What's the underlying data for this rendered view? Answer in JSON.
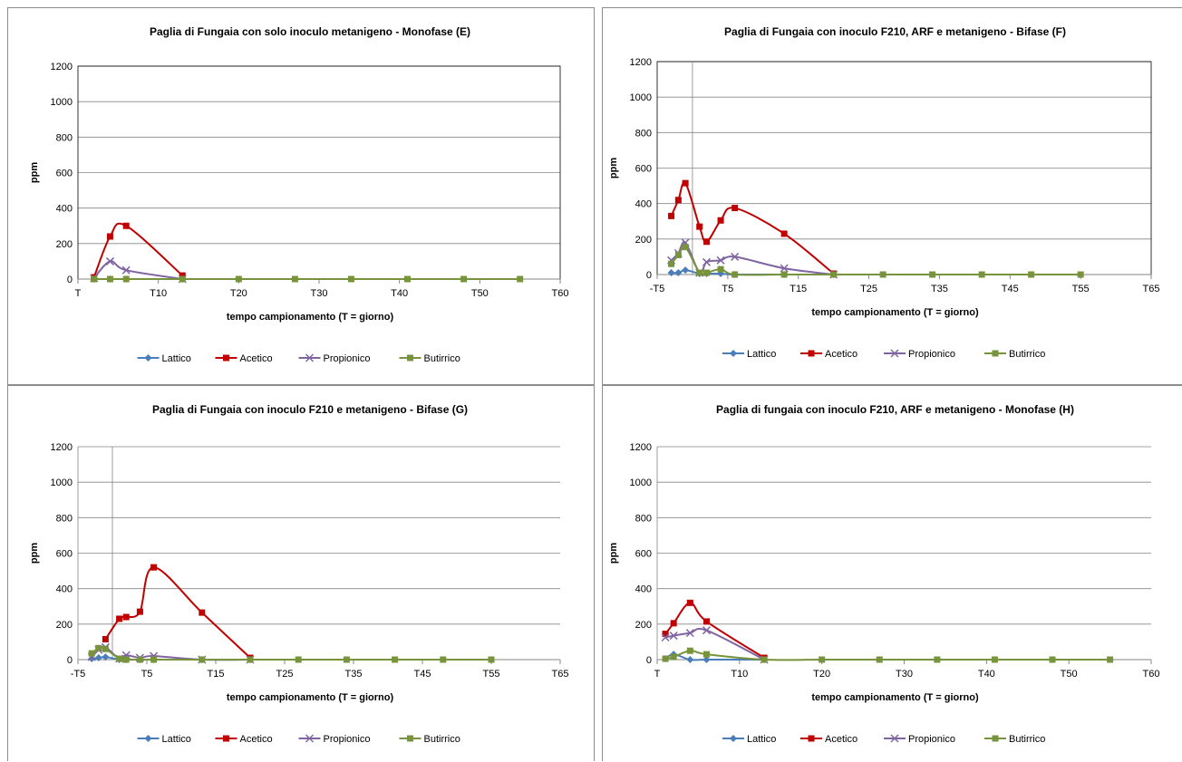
{
  "chart_data": [
    {
      "type": "line",
      "title": "Paglia di Fungaia con solo inoculo metanigeno - Monofase (E)",
      "xlabel": "tempo campionamento (T = giorno)",
      "ylabel": "ppm",
      "xlim": [
        0,
        60
      ],
      "ylim": [
        0,
        1200
      ],
      "y_ticks": [
        "0",
        "200",
        "400",
        "600",
        "800",
        "1000",
        "1200"
      ],
      "x_ticks": [
        {
          "x": 0,
          "label": "T"
        },
        {
          "x": 10,
          "label": "T10"
        },
        {
          "x": 20,
          "label": "T20"
        },
        {
          "x": 30,
          "label": "T30"
        },
        {
          "x": 40,
          "label": "T40"
        },
        {
          "x": 50,
          "label": "T50"
        },
        {
          "x": 60,
          "label": "T60"
        }
      ],
      "grid": true,
      "plot_border": true,
      "vline_x": null,
      "legend_position": "bottom",
      "series": [
        {
          "name": "Lattico",
          "color": "#4a7ebb",
          "marker": "diamond",
          "points": [
            [
              2,
              0
            ],
            [
              4,
              0
            ],
            [
              6,
              0
            ],
            [
              13,
              0
            ]
          ]
        },
        {
          "name": "Acetico",
          "color": "#c00000",
          "marker": "square",
          "points": [
            [
              2,
              10
            ],
            [
              4,
              240
            ],
            [
              6,
              300
            ],
            [
              13,
              20
            ]
          ]
        },
        {
          "name": "Propionico",
          "color": "#8064a2",
          "marker": "x",
          "points": [
            [
              2,
              5
            ],
            [
              4,
              100
            ],
            [
              6,
              50
            ],
            [
              13,
              0
            ]
          ]
        },
        {
          "name": "Butirrico",
          "color": "#77933c",
          "marker": "square",
          "points": [
            [
              2,
              0
            ],
            [
              4,
              0
            ],
            [
              6,
              0
            ],
            [
              13,
              0
            ],
            [
              20,
              0
            ],
            [
              27,
              0
            ],
            [
              34,
              0
            ],
            [
              41,
              0
            ],
            [
              48,
              0
            ],
            [
              55,
              0
            ]
          ]
        }
      ]
    },
    {
      "type": "line",
      "title": "Paglia di Fungaia con inoculo F210, ARF e metanigeno - Bifase (F)",
      "xlabel": "tempo campionamento (T = giorno)",
      "ylabel": "ppm",
      "xlim": [
        -5,
        65
      ],
      "ylim": [
        0,
        1200
      ],
      "y_ticks": [
        "0",
        "200",
        "400",
        "600",
        "800",
        "1000",
        "1200"
      ],
      "x_ticks": [
        {
          "x": -5,
          "label": "-T5"
        },
        {
          "x": 5,
          "label": "T5"
        },
        {
          "x": 15,
          "label": "T15"
        },
        {
          "x": 25,
          "label": "T25"
        },
        {
          "x": 35,
          "label": "T35"
        },
        {
          "x": 45,
          "label": "T45"
        },
        {
          "x": 55,
          "label": "T55"
        },
        {
          "x": 65,
          "label": "T65"
        }
      ],
      "grid": true,
      "plot_border": true,
      "vline_x": 0,
      "legend_position": "bottom",
      "series": [
        {
          "name": "Lattico",
          "color": "#4a7ebb",
          "marker": "diamond",
          "points": [
            [
              -3,
              10
            ],
            [
              -2,
              10
            ],
            [
              -1,
              25
            ],
            [
              1,
              5
            ],
            [
              2,
              5
            ],
            [
              4,
              5
            ],
            [
              6,
              0
            ],
            [
              13,
              0
            ],
            [
              20,
              0
            ]
          ]
        },
        {
          "name": "Acetico",
          "color": "#c00000",
          "marker": "square",
          "points": [
            [
              -3,
              330
            ],
            [
              -2,
              420
            ],
            [
              -1,
              515
            ],
            [
              1,
              270
            ],
            [
              2,
              185
            ],
            [
              4,
              305
            ],
            [
              6,
              375
            ],
            [
              13,
              230
            ],
            [
              20,
              5
            ]
          ]
        },
        {
          "name": "Propionico",
          "color": "#8064a2",
          "marker": "x",
          "points": [
            [
              -3,
              80
            ],
            [
              -2,
              120
            ],
            [
              -1,
              180
            ],
            [
              1,
              10
            ],
            [
              2,
              70
            ],
            [
              4,
              80
            ],
            [
              6,
              100
            ],
            [
              13,
              35
            ],
            [
              20,
              0
            ]
          ]
        },
        {
          "name": "Butirrico",
          "color": "#77933c",
          "marker": "square",
          "points": [
            [
              -3,
              60
            ],
            [
              -2,
              110
            ],
            [
              -1,
              155
            ],
            [
              1,
              10
            ],
            [
              2,
              10
            ],
            [
              4,
              30
            ],
            [
              6,
              0
            ],
            [
              13,
              0
            ],
            [
              20,
              0
            ],
            [
              27,
              0
            ],
            [
              34,
              0
            ],
            [
              41,
              0
            ],
            [
              48,
              0
            ],
            [
              55,
              0
            ]
          ]
        }
      ]
    },
    {
      "type": "line",
      "title": "Paglia di Fungaia con inoculo F210 e metanigeno - Bifase (G)",
      "xlabel": "tempo campionamento (T = giorno)",
      "ylabel": "ppm",
      "xlim": [
        -5,
        65
      ],
      "ylim": [
        0,
        1200
      ],
      "y_ticks": [
        "0",
        "200",
        "400",
        "600",
        "800",
        "1000",
        "1200"
      ],
      "x_ticks": [
        {
          "x": -5,
          "label": "-T5"
        },
        {
          "x": 5,
          "label": "T5"
        },
        {
          "x": 15,
          "label": "T15"
        },
        {
          "x": 25,
          "label": "T25"
        },
        {
          "x": 35,
          "label": "T35"
        },
        {
          "x": 45,
          "label": "T45"
        },
        {
          "x": 55,
          "label": "T55"
        },
        {
          "x": 65,
          "label": "T65"
        }
      ],
      "grid": true,
      "plot_border": false,
      "vline_x": 0,
      "legend_position": "bottom",
      "series": [
        {
          "name": "Lattico",
          "color": "#4a7ebb",
          "marker": "diamond",
          "points": [
            [
              -3,
              5
            ],
            [
              -2,
              10
            ],
            [
              -1,
              15
            ],
            [
              1,
              0
            ],
            [
              2,
              0
            ],
            [
              4,
              0
            ],
            [
              6,
              0
            ],
            [
              13,
              0
            ],
            [
              20,
              0
            ]
          ]
        },
        {
          "name": "Acetico",
          "color": "#c00000",
          "marker": "square",
          "points": [
            [
              -1,
              115
            ],
            [
              1,
              230
            ],
            [
              2,
              240
            ],
            [
              4,
              270
            ],
            [
              6,
              520
            ],
            [
              13,
              265
            ],
            [
              20,
              10
            ]
          ]
        },
        {
          "name": "Propionico",
          "color": "#8064a2",
          "marker": "x",
          "points": [
            [
              -3,
              15
            ],
            [
              -2,
              55
            ],
            [
              -1,
              70
            ],
            [
              1,
              5
            ],
            [
              2,
              25
            ],
            [
              4,
              10
            ],
            [
              6,
              20
            ],
            [
              13,
              0
            ],
            [
              20,
              0
            ]
          ]
        },
        {
          "name": "Butirrico",
          "color": "#77933c",
          "marker": "square",
          "points": [
            [
              -3,
              35
            ],
            [
              -2,
              65
            ],
            [
              -1,
              60
            ],
            [
              1,
              5
            ],
            [
              2,
              0
            ],
            [
              4,
              0
            ],
            [
              6,
              0
            ],
            [
              13,
              0
            ],
            [
              20,
              0
            ],
            [
              27,
              0
            ],
            [
              34,
              0
            ],
            [
              41,
              0
            ],
            [
              48,
              0
            ],
            [
              55,
              0
            ]
          ]
        }
      ]
    },
    {
      "type": "line",
      "title": "Paglia di fungaia con inoculo F210, ARF e metanigeno - Monofase (H)",
      "xlabel": "tempo campionamento (T = giorno)",
      "ylabel": "ppm",
      "xlim": [
        0,
        60
      ],
      "ylim": [
        0,
        1200
      ],
      "y_ticks": [
        "0",
        "200",
        "400",
        "600",
        "800",
        "1000",
        "1200"
      ],
      "x_ticks": [
        {
          "x": 0,
          "label": "T"
        },
        {
          "x": 10,
          "label": "T10"
        },
        {
          "x": 20,
          "label": "T20"
        },
        {
          "x": 30,
          "label": "T30"
        },
        {
          "x": 40,
          "label": "T40"
        },
        {
          "x": 50,
          "label": "T50"
        },
        {
          "x": 60,
          "label": "T60"
        }
      ],
      "grid": true,
      "plot_border": false,
      "vline_x": null,
      "legend_position": "bottom",
      "series": [
        {
          "name": "Lattico",
          "color": "#4a7ebb",
          "marker": "diamond",
          "points": [
            [
              1,
              5
            ],
            [
              2,
              30
            ],
            [
              4,
              0
            ],
            [
              6,
              0
            ],
            [
              13,
              0
            ]
          ]
        },
        {
          "name": "Acetico",
          "color": "#c00000",
          "marker": "square",
          "points": [
            [
              1,
              145
            ],
            [
              2,
              205
            ],
            [
              4,
              320
            ],
            [
              6,
              215
            ],
            [
              13,
              10
            ]
          ]
        },
        {
          "name": "Propionico",
          "color": "#8064a2",
          "marker": "x",
          "points": [
            [
              1,
              125
            ],
            [
              2,
              135
            ],
            [
              4,
              150
            ],
            [
              6,
              165
            ],
            [
              13,
              0
            ]
          ]
        },
        {
          "name": "Butirrico",
          "color": "#77933c",
          "marker": "square",
          "points": [
            [
              1,
              5
            ],
            [
              2,
              15
            ],
            [
              4,
              50
            ],
            [
              6,
              30
            ],
            [
              13,
              0
            ],
            [
              20,
              0
            ],
            [
              27,
              0
            ],
            [
              34,
              0
            ],
            [
              41,
              0
            ],
            [
              48,
              0
            ],
            [
              55,
              0
            ]
          ]
        }
      ]
    }
  ]
}
